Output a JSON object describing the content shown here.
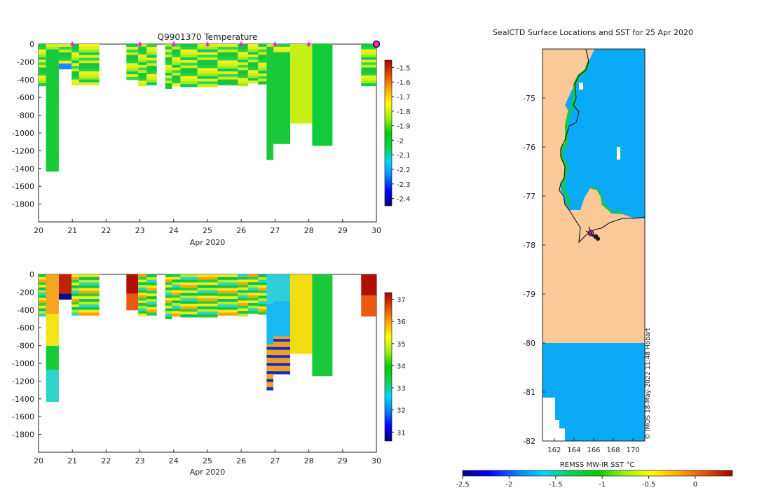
{
  "colors": {
    "land": "#fbc998",
    "sea": "#0aaaf7",
    "green": "#18c93a",
    "yellow": "#e7ef16",
    "track": "#ff22dd",
    "frame": "#222222",
    "bg": "#ffffff"
  },
  "chart_data": [
    {
      "type": "heatmap",
      "title": "Q9901370  Temperature",
      "xlabel": "Apr 2020",
      "ylabel": "",
      "xlim": [
        20,
        30
      ],
      "ylim": [
        -2000,
        0
      ],
      "xticks": [
        "20",
        "21",
        "22",
        "23",
        "24",
        "25",
        "26",
        "27",
        "28",
        "29",
        "30"
      ],
      "yticks": [
        "0",
        "-200",
        "-400",
        "-600",
        "-800",
        "-1000",
        "-1200",
        "-1400",
        "-1600",
        "-1800"
      ],
      "colorbar": {
        "min": -2.45,
        "max": -1.45,
        "ticks": [
          "-1.5",
          "-1.6",
          "-1.7",
          "-1.8",
          "-1.9",
          "-2",
          "-2.1",
          "-2.2",
          "-2.3",
          "-2.4"
        ],
        "colors": [
          "#00007f",
          "#0000ff",
          "#0080ff",
          "#00d4ff",
          "#10d050",
          "#00cc00",
          "#9bef15",
          "#ffff00",
          "#ffa500",
          "#e05000",
          "#a00000"
        ]
      },
      "profile_markers_day": [
        21,
        23,
        24,
        25,
        26,
        27,
        28,
        30
      ],
      "profiles": [
        {
          "x0": 20.0,
          "x1": 20.22,
          "depth": 470
        },
        {
          "x0": 20.22,
          "x1": 20.6,
          "depth": 1430
        },
        {
          "x0": 20.6,
          "x1": 20.98,
          "depth": 280
        },
        {
          "x0": 20.98,
          "x1": 21.2,
          "depth": 460
        },
        {
          "x0": 21.2,
          "x1": 21.8,
          "depth": 460
        },
        {
          "x0": 22.6,
          "x1": 22.95,
          "depth": 400
        },
        {
          "x0": 22.95,
          "x1": 23.2,
          "depth": 470
        },
        {
          "x0": 23.2,
          "x1": 23.5,
          "depth": 460
        },
        {
          "x0": 23.75,
          "x1": 23.95,
          "depth": 500
        },
        {
          "x0": 23.95,
          "x1": 24.2,
          "depth": 470
        },
        {
          "x0": 24.2,
          "x1": 24.7,
          "depth": 480
        },
        {
          "x0": 24.7,
          "x1": 25.3,
          "depth": 480
        },
        {
          "x0": 25.3,
          "x1": 25.9,
          "depth": 460
        },
        {
          "x0": 25.9,
          "x1": 26.2,
          "depth": 470
        },
        {
          "x0": 26.2,
          "x1": 26.5,
          "depth": 440
        },
        {
          "x0": 26.5,
          "x1": 26.75,
          "depth": 450
        },
        {
          "x0": 26.75,
          "x1": 26.95,
          "depth": 1300
        },
        {
          "x0": 26.95,
          "x1": 27.45,
          "depth": 1120
        },
        {
          "x0": 27.45,
          "x1": 28.1,
          "depth": 890
        },
        {
          "x0": 28.1,
          "x1": 28.7,
          "depth": 1140
        },
        {
          "x0": 29.55,
          "x1": 30.0,
          "depth": 470
        }
      ]
    },
    {
      "type": "heatmap",
      "title": "",
      "xlabel": "Apr 2020",
      "ylabel": "",
      "xlim": [
        20,
        30
      ],
      "ylim": [
        -2000,
        0
      ],
      "xticks": [
        "20",
        "21",
        "22",
        "23",
        "24",
        "25",
        "26",
        "27",
        "28",
        "29",
        "30"
      ],
      "yticks": [
        "0",
        "-200",
        "-400",
        "-600",
        "-800",
        "-1000",
        "-1200",
        "-1400",
        "-1600",
        "-1800"
      ],
      "colorbar": {
        "min": 30.6,
        "max": 37.3,
        "ticks": [
          "37",
          "36",
          "35",
          "34",
          "33",
          "32",
          "31"
        ],
        "colors": [
          "#00007f",
          "#0000ff",
          "#0080ff",
          "#00d4ff",
          "#10d050",
          "#00cc00",
          "#9bef15",
          "#ffff00",
          "#ffa500",
          "#e05000",
          "#a00000"
        ]
      },
      "profiles": [
        {
          "x0": 20.0,
          "x1": 20.22,
          "depth": 470
        },
        {
          "x0": 20.22,
          "x1": 20.6,
          "depth": 1430
        },
        {
          "x0": 20.6,
          "x1": 20.98,
          "depth": 280
        },
        {
          "x0": 20.98,
          "x1": 21.2,
          "depth": 460
        },
        {
          "x0": 21.2,
          "x1": 21.8,
          "depth": 460
        },
        {
          "x0": 22.6,
          "x1": 22.95,
          "depth": 400
        },
        {
          "x0": 22.95,
          "x1": 23.2,
          "depth": 470
        },
        {
          "x0": 23.2,
          "x1": 23.5,
          "depth": 460
        },
        {
          "x0": 23.75,
          "x1": 23.95,
          "depth": 500
        },
        {
          "x0": 23.95,
          "x1": 24.2,
          "depth": 470
        },
        {
          "x0": 24.2,
          "x1": 24.7,
          "depth": 480
        },
        {
          "x0": 24.7,
          "x1": 25.3,
          "depth": 480
        },
        {
          "x0": 25.3,
          "x1": 25.9,
          "depth": 460
        },
        {
          "x0": 25.9,
          "x1": 26.2,
          "depth": 470
        },
        {
          "x0": 26.2,
          "x1": 26.5,
          "depth": 440
        },
        {
          "x0": 26.5,
          "x1": 26.75,
          "depth": 450
        },
        {
          "x0": 26.75,
          "x1": 26.95,
          "depth": 1300
        },
        {
          "x0": 26.95,
          "x1": 27.45,
          "depth": 1120
        },
        {
          "x0": 27.45,
          "x1": 28.1,
          "depth": 890
        },
        {
          "x0": 28.1,
          "x1": 28.7,
          "depth": 1140
        },
        {
          "x0": 29.55,
          "x1": 30.0,
          "depth": 470
        }
      ]
    },
    {
      "type": "heatmap",
      "title": "SealCTD Surface Locations and SST for 25 Apr 2020",
      "xlabel": "REMSS MW-IR SST °C",
      "xlim": [
        160.8,
        171.2
      ],
      "ylim": [
        -82,
        -74
      ],
      "xticks": [
        "162",
        "164",
        "166",
        "168",
        "170"
      ],
      "yticks": [
        "-75",
        "-76",
        "-77",
        "-78",
        "-79",
        "-80",
        "-81",
        "-82"
      ],
      "colorbar": {
        "min": -2.5,
        "max": 0.4,
        "ticks": [
          "-2.5",
          "-2",
          "-1.5",
          "-1",
          "-0.5",
          "0"
        ],
        "colors": [
          "#00007f",
          "#0000ff",
          "#0080ff",
          "#00d4ff",
          "#10d050",
          "#00cc00",
          "#9bef15",
          "#ffff00",
          "#ffa500",
          "#e05000",
          "#a00000"
        ]
      },
      "watermark": "© IMOS 18-May-2022 11:48 Hobart",
      "track_points": [
        [
          165.6,
          -77.8
        ],
        [
          165.9,
          -77.8
        ],
        [
          166.2,
          -77.85
        ]
      ]
    }
  ]
}
